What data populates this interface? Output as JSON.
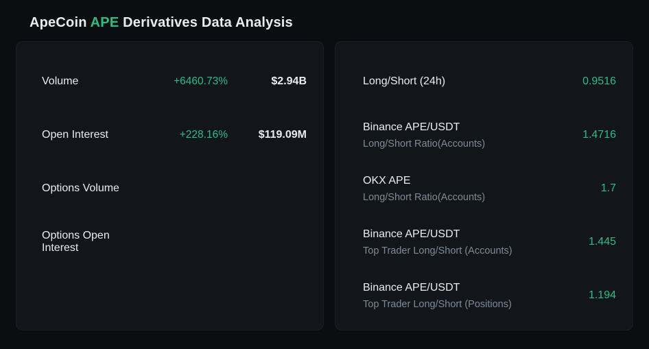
{
  "title": {
    "coin": "ApeCoin",
    "symbol": "APE",
    "suffix": "Derivatives Data Analysis"
  },
  "stats_card": {
    "rows": [
      {
        "label": "Volume",
        "change": "+6460.73%",
        "value": "$2.94B"
      },
      {
        "label": "Open Interest",
        "change": "+228.16%",
        "value": "$119.09M"
      },
      {
        "label": "Options Volume",
        "change": "",
        "value": ""
      },
      {
        "label": "Options Open Interest",
        "change": "",
        "value": ""
      }
    ]
  },
  "ratio_card": {
    "rows": [
      {
        "title": "Long/Short (24h)",
        "subtitle": "",
        "value": "0.9516"
      },
      {
        "title": "Binance APE/USDT",
        "subtitle": "Long/Short Ratio(Accounts)",
        "value": "1.4716"
      },
      {
        "title": "OKX APE",
        "subtitle": "Long/Short Ratio(Accounts)",
        "value": "1.7"
      },
      {
        "title": "Binance APE/USDT",
        "subtitle": "Top Trader Long/Short (Accounts)",
        "value": "1.445"
      },
      {
        "title": "Binance APE/USDT",
        "subtitle": "Top Trader Long/Short (Positions)",
        "value": "1.194"
      }
    ]
  },
  "colors": {
    "accent": "#2ebd85",
    "background": "#0b0e11",
    "card": "#12151a",
    "text_primary": "#eaecef",
    "text_secondary": "#7f8a99"
  }
}
